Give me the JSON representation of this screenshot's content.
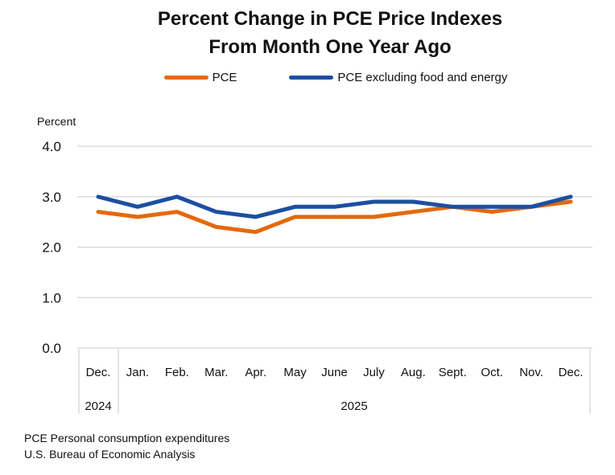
{
  "title": {
    "line1": "Percent Change in PCE Price Indexes",
    "line2": "From Month One Year Ago"
  },
  "legend": {
    "items": [
      {
        "label": "PCE",
        "color": "#E4690B"
      },
      {
        "label": "PCE excluding food and energy",
        "color": "#1C4FA1"
      }
    ]
  },
  "footnotes": {
    "line1": "PCE Personal consumption expenditures",
    "line2": "U.S. Bureau of Economic Analysis"
  },
  "chart_data": {
    "type": "line",
    "title": "Percent Change in PCE Price Indexes From Month One Year Ago",
    "ylabel": "Percent",
    "ylim": [
      0.0,
      4.0
    ],
    "y_tick_labels": [
      "0.0",
      "1.0",
      "2.0",
      "3.0",
      "4.0"
    ],
    "y_tick_values": [
      0,
      1,
      2,
      3,
      4
    ],
    "grid": "horizontal",
    "legend_position": "top",
    "categories": [
      "Dec.",
      "Jan.",
      "Feb.",
      "Mar.",
      "Apr.",
      "May",
      "June",
      "July",
      "Aug.",
      "Sept.",
      "Oct.",
      "Nov.",
      "Dec."
    ],
    "year_groups": [
      {
        "label": "2024",
        "start_index": 0,
        "end_index": 0
      },
      {
        "label": "2025",
        "start_index": 1,
        "end_index": 12
      }
    ],
    "series": [
      {
        "name": "PCE",
        "color": "#E4690B",
        "values": [
          2.7,
          2.6,
          2.7,
          2.4,
          2.3,
          2.6,
          2.6,
          2.6,
          2.7,
          2.8,
          2.7,
          2.8,
          2.9
        ]
      },
      {
        "name": "PCE excluding food and energy",
        "color": "#1C4FA1",
        "values": [
          3.0,
          2.8,
          3.0,
          2.7,
          2.6,
          2.8,
          2.8,
          2.9,
          2.9,
          2.8,
          2.8,
          2.8,
          3.0
        ]
      }
    ]
  }
}
